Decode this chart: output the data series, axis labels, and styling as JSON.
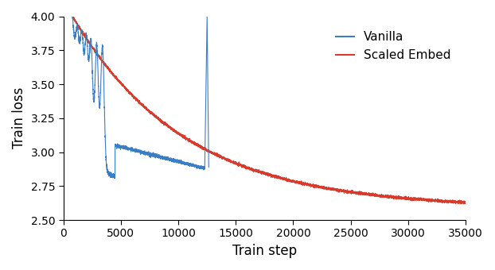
{
  "title": "",
  "xlabel": "Train step",
  "ylabel": "Train loss",
  "xlim": [
    0,
    35000
  ],
  "ylim": [
    2.5,
    4.0
  ],
  "xticks": [
    0,
    5000,
    10000,
    15000,
    20000,
    25000,
    30000,
    35000
  ],
  "yticks": [
    2.5,
    2.75,
    3.0,
    3.25,
    3.5,
    3.75,
    4.0
  ],
  "vanilla_color": "#3a7ec8",
  "scaled_color": "#d93a2b",
  "legend_labels": [
    "Vanilla",
    "Scaled Embed"
  ],
  "spike_x": 12500,
  "vanilla_end_step": 12600,
  "red_end_step": 35000,
  "red_start_step": 800,
  "vanilla_start_step": 800,
  "linewidth": 0.8,
  "figsize": [
    6.22,
    3.4
  ],
  "dpi": 100
}
